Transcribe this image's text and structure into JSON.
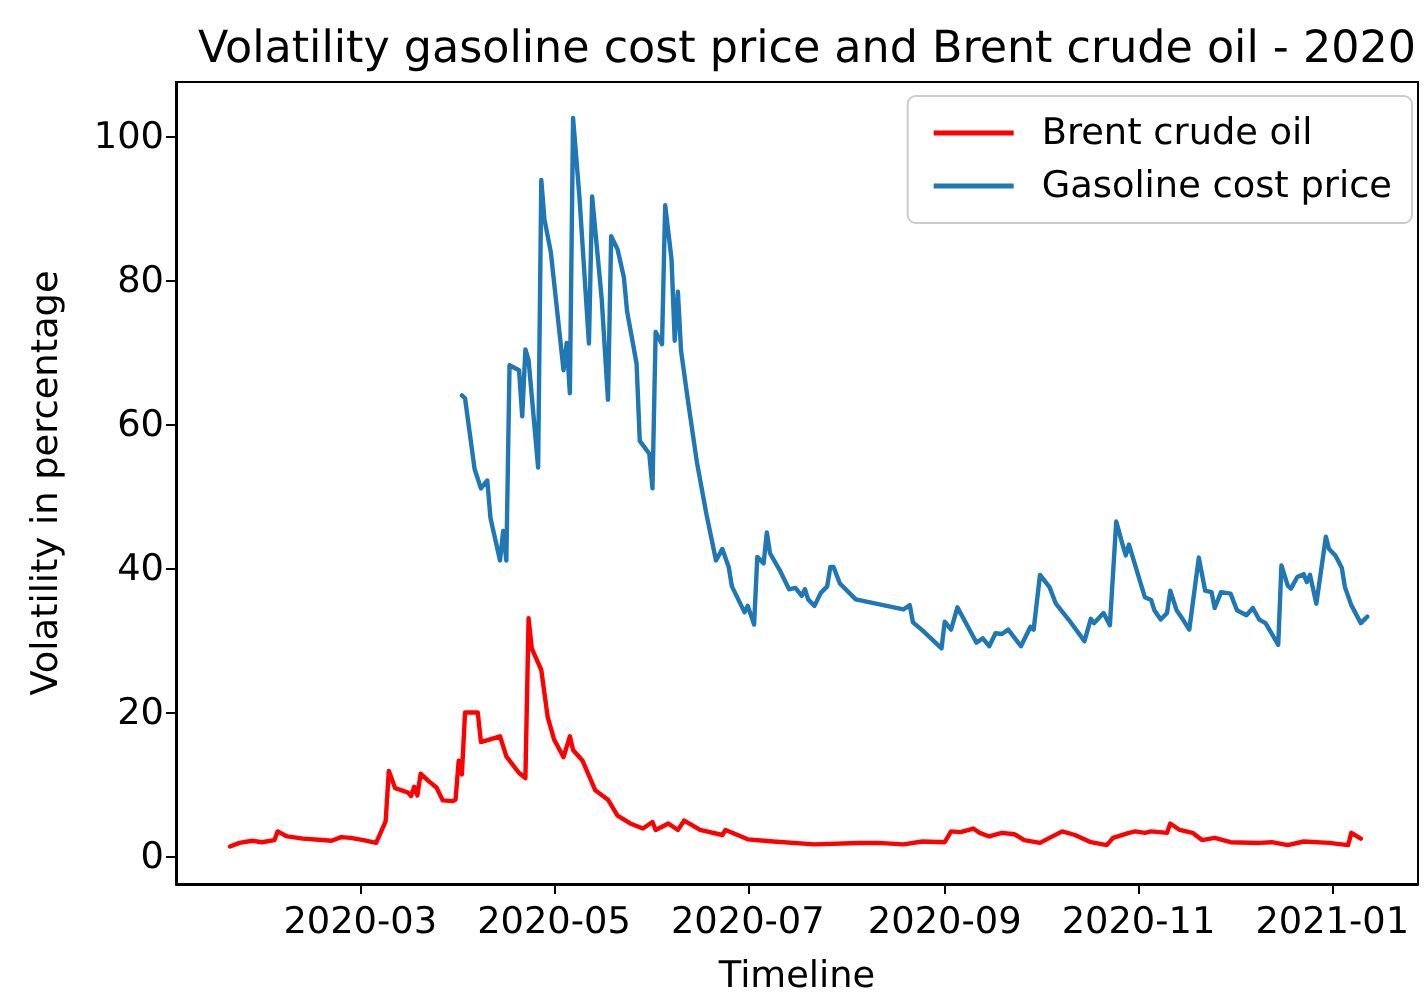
{
  "chart_data": {
    "type": "line",
    "title": "Volatility gasoline cost price and Brent crude oil - 2020",
    "xlabel": "Timeline",
    "ylabel": "Volatility in percentage",
    "xlim": [
      "2020-01-03",
      "2021-01-28"
    ],
    "ylim": [
      -3.7,
      107.6
    ],
    "xticks": [
      "2020-03",
      "2020-05",
      "2020-07",
      "2020-09",
      "2020-11",
      "2021-01"
    ],
    "yticks": [
      0,
      20,
      40,
      60,
      80,
      100
    ],
    "legend": "top right",
    "series": [
      {
        "name": "Brent crude oil",
        "color": "#ff0000",
        "x": [
          "2020-01-20",
          "2020-01-23",
          "2020-01-27",
          "2020-01-30",
          "2020-02-03",
          "2020-02-04",
          "2020-02-07",
          "2020-02-12",
          "2020-02-18",
          "2020-02-21",
          "2020-02-24",
          "2020-02-27",
          "2020-03-02",
          "2020-03-06",
          "2020-03-09",
          "2020-03-10",
          "2020-03-12",
          "2020-03-16",
          "2020-03-17",
          "2020-03-18",
          "2020-03-19",
          "2020-03-20",
          "2020-03-23",
          "2020-03-25",
          "2020-03-27",
          "2020-03-30",
          "2020-03-31",
          "2020-04-01",
          "2020-04-02",
          "2020-04-03",
          "2020-04-07",
          "2020-04-08",
          "2020-04-14",
          "2020-04-16",
          "2020-04-20",
          "2020-04-22",
          "2020-04-23",
          "2020-04-24",
          "2020-04-27",
          "2020-04-29",
          "2020-05-01",
          "2020-05-04",
          "2020-05-06",
          "2020-05-07",
          "2020-05-10",
          "2020-05-14",
          "2020-05-18",
          "2020-05-21",
          "2020-05-25",
          "2020-05-29",
          "2020-06-01",
          "2020-06-02",
          "2020-06-06",
          "2020-06-09",
          "2020-06-11",
          "2020-06-16",
          "2020-06-23",
          "2020-06-24",
          "2020-07-01",
          "2020-07-09",
          "2020-07-22",
          "2020-08-05",
          "2020-08-11",
          "2020-08-19",
          "2020-08-25",
          "2020-09-01",
          "2020-09-03",
          "2020-09-06",
          "2020-09-10",
          "2020-09-12",
          "2020-09-15",
          "2020-09-19",
          "2020-09-23",
          "2020-09-26",
          "2020-10-01",
          "2020-10-04",
          "2020-10-08",
          "2020-10-12",
          "2020-10-17",
          "2020-10-22",
          "2020-10-24",
          "2020-10-29",
          "2020-10-31",
          "2020-11-03",
          "2020-11-05",
          "2020-11-10",
          "2020-11-11",
          "2020-11-14",
          "2020-11-18",
          "2020-11-21",
          "2020-11-25",
          "2020-11-30",
          "2020-12-09",
          "2020-12-13",
          "2020-12-18",
          "2020-12-23",
          "2020-12-31",
          "2021-01-06",
          "2021-01-07",
          "2021-01-10"
        ],
        "values": [
          1.5,
          2.0,
          2.3,
          2.1,
          2.4,
          3.6,
          2.9,
          2.6,
          2.4,
          2.3,
          2.8,
          2.7,
          2.4,
          2.0,
          5.0,
          12.0,
          9.6,
          9.0,
          8.5,
          9.8,
          8.6,
          11.6,
          10.4,
          9.7,
          7.9,
          7.8,
          8.0,
          13.4,
          11.5,
          20.1,
          20.1,
          16.0,
          16.8,
          14.0,
          11.7,
          11.0,
          33.2,
          29.0,
          26.0,
          19.5,
          16.4,
          13.9,
          16.8,
          14.9,
          13.4,
          9.3,
          8.0,
          5.8,
          4.7,
          4.0,
          4.9,
          3.8,
          4.7,
          3.8,
          5.1,
          3.8,
          3.1,
          3.8,
          2.5,
          2.2,
          1.8,
          2.0,
          2.0,
          1.8,
          2.2,
          2.1,
          3.6,
          3.5,
          4.0,
          3.4,
          2.9,
          3.4,
          3.2,
          2.4,
          2.0,
          2.7,
          3.6,
          3.1,
          2.1,
          1.7,
          2.7,
          3.4,
          3.6,
          3.4,
          3.6,
          3.4,
          4.7,
          3.8,
          3.4,
          2.4,
          2.7,
          2.1,
          2.0,
          2.1,
          1.7,
          2.2,
          2.0,
          1.7,
          3.4,
          2.6
        ]
      },
      {
        "name": "Gasoline cost price",
        "color": "#1f77b4",
        "x": [
          "2020-04-02",
          "2020-04-03",
          "2020-04-06",
          "2020-04-08",
          "2020-04-10",
          "2020-04-11",
          "2020-04-14",
          "2020-04-15",
          "2020-04-16",
          "2020-04-17",
          "2020-04-20",
          "2020-04-21",
          "2020-04-22",
          "2020-04-23",
          "2020-04-26",
          "2020-04-27",
          "2020-04-28",
          "2020-04-30",
          "2020-05-04",
          "2020-05-05",
          "2020-05-06",
          "2020-05-07",
          "2020-05-09",
          "2020-05-12",
          "2020-05-13",
          "2020-05-16",
          "2020-05-18",
          "2020-05-19",
          "2020-05-21",
          "2020-05-23",
          "2020-05-24",
          "2020-05-27",
          "2020-05-28",
          "2020-05-31",
          "2020-06-01",
          "2020-06-02",
          "2020-06-03",
          "2020-06-04",
          "2020-06-05",
          "2020-06-07",
          "2020-06-08",
          "2020-06-09",
          "2020-06-10",
          "2020-06-12",
          "2020-06-15",
          "2020-06-18",
          "2020-06-21",
          "2020-06-23",
          "2020-06-25",
          "2020-06-26",
          "2020-06-30",
          "2020-07-01",
          "2020-07-03",
          "2020-07-04",
          "2020-07-06",
          "2020-07-07",
          "2020-07-08",
          "2020-07-11",
          "2020-07-14",
          "2020-07-16",
          "2020-07-18",
          "2020-07-19",
          "2020-07-20",
          "2020-07-22",
          "2020-07-24",
          "2020-07-26",
          "2020-07-27",
          "2020-07-28",
          "2020-07-30",
          "2020-08-04",
          "2020-08-19",
          "2020-08-21",
          "2020-08-22",
          "2020-08-25",
          "2020-08-31",
          "2020-09-01",
          "2020-09-03",
          "2020-09-05",
          "2020-09-11",
          "2020-09-13",
          "2020-09-15",
          "2020-09-17",
          "2020-09-19",
          "2020-09-21",
          "2020-09-25",
          "2020-09-28",
          "2020-09-29",
          "2020-10-01",
          "2020-10-04",
          "2020-10-06",
          "2020-10-10",
          "2020-10-15",
          "2020-10-17",
          "2020-10-18",
          "2020-10-21",
          "2020-10-23",
          "2020-10-25",
          "2020-10-27",
          "2020-10-28",
          "2020-10-29",
          "2020-11-03",
          "2020-11-05",
          "2020-11-06",
          "2020-11-08",
          "2020-11-10",
          "2020-11-11",
          "2020-11-13",
          "2020-11-15",
          "2020-11-17",
          "2020-11-20",
          "2020-11-22",
          "2020-11-24",
          "2020-11-25",
          "2020-11-27",
          "2020-11-30",
          "2020-12-02",
          "2020-12-05",
          "2020-12-07",
          "2020-12-09",
          "2020-12-11",
          "2020-12-13",
          "2020-12-15",
          "2020-12-16",
          "2020-12-18",
          "2020-12-19",
          "2020-12-21",
          "2020-12-23",
          "2020-12-24",
          "2020-12-25",
          "2020-12-27",
          "2020-12-30",
          "2020-12-31",
          "2021-01-02",
          "2021-01-04",
          "2021-01-05",
          "2021-01-07",
          "2021-01-10",
          "2021-01-12"
        ],
        "values": [
          64.1,
          63.7,
          53.9,
          51.2,
          52.3,
          47.1,
          41.2,
          45.3,
          41.2,
          68.3,
          67.6,
          61.2,
          70.5,
          69.0,
          54.1,
          94.0,
          88.5,
          84.0,
          67.6,
          71.4,
          64.4,
          102.6,
          91.7,
          71.3,
          91.7,
          77.6,
          63.5,
          86.2,
          84.4,
          80.5,
          75.8,
          68.5,
          57.8,
          56.0,
          51.2,
          72.9,
          72.1,
          71.2,
          90.5,
          83.0,
          71.7,
          78.5,
          70.3,
          63.9,
          54.8,
          47.6,
          41.2,
          42.8,
          40.3,
          37.6,
          34.0,
          34.9,
          32.3,
          41.7,
          40.8,
          45.1,
          42.2,
          39.9,
          37.2,
          37.4,
          36.3,
          37.2,
          35.8,
          34.9,
          36.7,
          37.6,
          40.3,
          40.3,
          38.0,
          35.8,
          34.4,
          35.0,
          32.6,
          31.5,
          29.0,
          32.7,
          31.6,
          34.7,
          29.8,
          30.4,
          29.3,
          31.1,
          31.0,
          31.6,
          29.3,
          32.0,
          31.6,
          39.2,
          37.5,
          35.2,
          33.0,
          30.0,
          33.1,
          32.5,
          33.9,
          32.2,
          46.6,
          43.4,
          41.9,
          43.4,
          36.1,
          35.7,
          34.3,
          33.0,
          33.9,
          37.0,
          34.3,
          33.0,
          31.6,
          41.6,
          37.0,
          36.8,
          34.6,
          36.8,
          36.6,
          34.3,
          33.6,
          34.6,
          33.0,
          32.5,
          31.0,
          29.5,
          40.5,
          37.7,
          37.3,
          38.9,
          39.3,
          38.2,
          39.2,
          35.2,
          44.5,
          42.8,
          41.9,
          40.2,
          37.5,
          35.0,
          32.5,
          33.4
        ]
      }
    ]
  }
}
